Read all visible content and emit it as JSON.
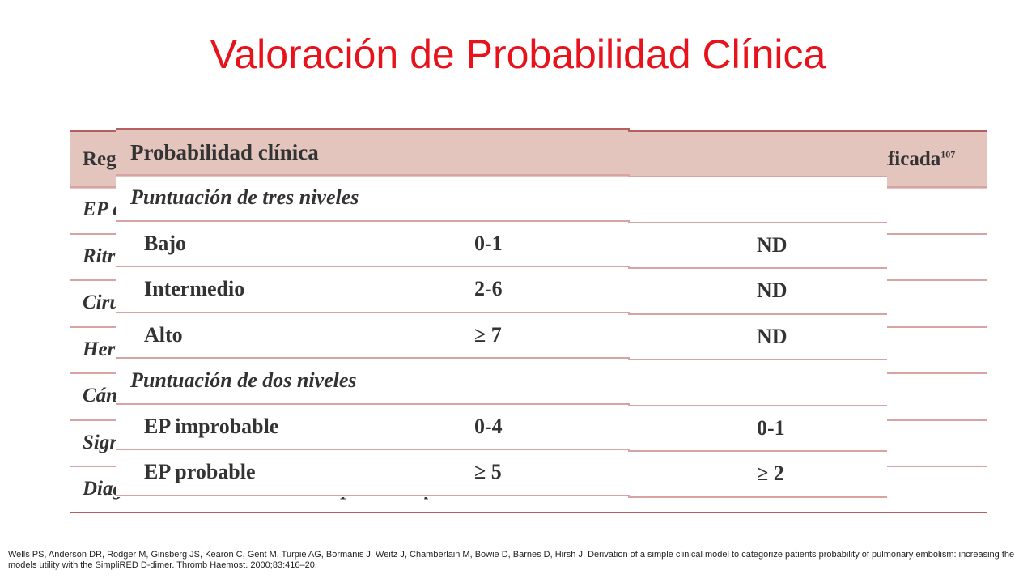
{
  "title": "Valoración de Probabilidad Clínica",
  "background_table": {
    "header_left": "Reg",
    "header_right": "ificada",
    "header_right_sup": "107",
    "rows": [
      "EP c",
      "Ritr",
      "Ciru",
      "Her",
      "Cán",
      "Sigr",
      "Diagnóstico alternativo menos probable que la EP"
    ]
  },
  "table": {
    "header": "Probabilidad clínica",
    "rows": [
      [
        "Puntuación de tres niveles"
      ],
      [
        "Bajo",
        "0-1",
        "ND"
      ],
      [
        "Intermedio",
        "2-6",
        "ND"
      ],
      [
        "Alto",
        "≥ 7",
        "ND"
      ],
      [
        "Puntuación de dos niveles"
      ],
      [
        "EP improbable",
        "0-4",
        "0-1"
      ],
      [
        "EP probable",
        "≥ 5",
        "≥ 2"
      ]
    ]
  },
  "footnote": "Wells PS, Anderson DR, Rodger M, Ginsberg JS, Kearon C, Gent M, Turpie AG, Bormanis J, Weitz J, Chamberlain M, Bowie D, Barnes D, Hirsh J. Derivation of a simple clinical model to categorize patients probability of pulmonary embolism: increasing the models utility with the SimpliRED D-dimer. Thromb Haemost. 2000;83:416–20."
}
